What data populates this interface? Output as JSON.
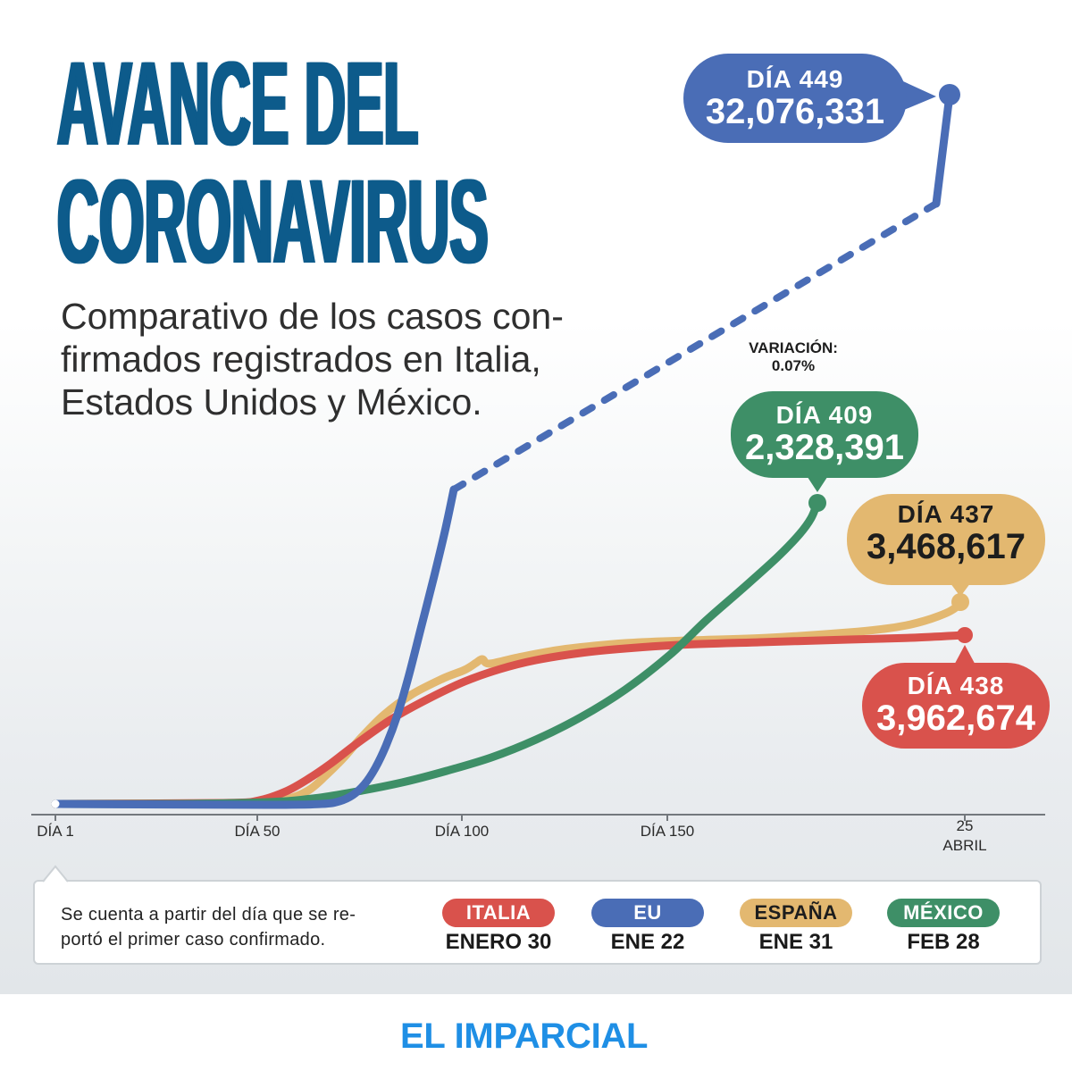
{
  "header": {
    "title_lines": [
      "AVANCE DEL",
      "CORONAVIRUS"
    ],
    "subtitle": "Comparativo de los casos con-\nfirmados registrados en Italia,\nEstados Unidos y México."
  },
  "chart_data": {
    "type": "line",
    "xlabel": "",
    "ylabel": "",
    "x_ticks": [
      "DÍA 1",
      "DÍA 50",
      "DÍA 100",
      "DÍA 150",
      "25\nABRIL"
    ],
    "grid": false,
    "legend": "bottom",
    "day_prefix": "DÍA",
    "annotation": "VARIACIÓN:\n0.07%",
    "series": [
      {
        "name": "ITALIA",
        "start_date": "ENERO 30",
        "color": "#d9524c",
        "label_color": "#ffffff",
        "end_day": 438,
        "end_cases": 3962674
      },
      {
        "name": "EU",
        "start_date": "ENE 22",
        "color": "#4a6db6",
        "label_color": "#ffffff",
        "end_day": 449,
        "end_cases": 32076331
      },
      {
        "name": "ESPAÑA",
        "start_date": "ENE 31",
        "color": "#e3b870",
        "label_color": "#1d1d1d",
        "end_day": 437,
        "end_cases": 3468617
      },
      {
        "name": "MÉXICO",
        "start_date": "FEB 28",
        "color": "#3e8f67",
        "label_color": "#ffffff",
        "end_day": 409,
        "end_cases": 2328391
      }
    ]
  },
  "legend_note": "Se cuenta a partir del día que se re-\nportó el primer caso confirmado.",
  "footer": {
    "logo": "EL IMPARCIAL"
  },
  "colors": {
    "title": "#0d5b8b",
    "subtitle": "#2f2f2f",
    "logo": "#1f8fe5"
  }
}
